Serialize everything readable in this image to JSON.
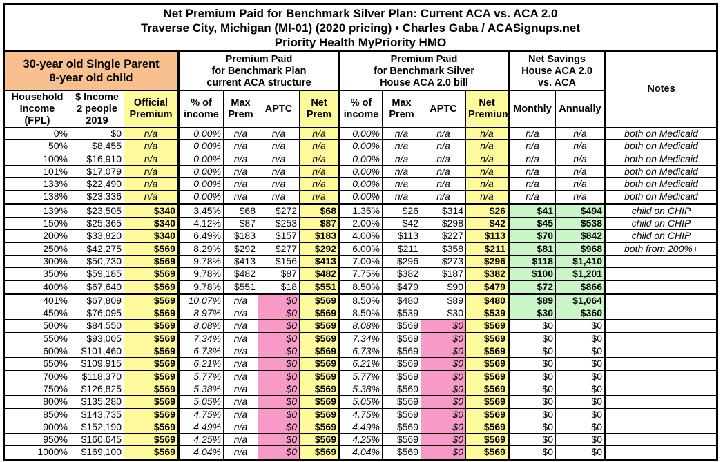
{
  "title": {
    "line1": "Net Premium Paid for Benchmark Silver Plan: Current ACA vs. ACA 2.0",
    "line2": "Traverse City, Michigan (MI-01) (2020 pricing) • Charles Gaba / ACASignups.net",
    "line3": "Priority Health MyPriority HMO"
  },
  "groups": {
    "household": "30-year old Single Parent\n8-year old child",
    "current": "Premium Paid\nfor Benchmark Plan\ncurrent ACA structure",
    "house": "Premium Paid\nfor Benchmark Silver\nHouse ACA 2.0 bill",
    "savings": "Net Savings\nHouse ACA 2.0\nvs. ACA",
    "notes": "Notes"
  },
  "columns": [
    "Household Income (FPL)",
    "$ Income 2 people 2019",
    "Official Premium",
    "% of income",
    "Max Prem",
    "APTC",
    "Net Prem",
    "% of income",
    "Max Prem",
    "APTC",
    "Net Premium",
    "Monthly",
    "Annually"
  ],
  "colors": {
    "yellow": "#fffa9c",
    "pink": "#f79ac8",
    "green": "#c9f5c9",
    "orange": "#f7c08e"
  },
  "rows": [
    [
      "0%",
      "$0",
      "n/a",
      "0.00%",
      "n/a",
      "n/a",
      "n/a",
      "0.00%",
      "n/a",
      "n/a",
      "n/a",
      "n/a",
      "n/a",
      "both on Medicaid"
    ],
    [
      "50%",
      "$8,455",
      "n/a",
      "0.00%",
      "n/a",
      "n/a",
      "n/a",
      "0.00%",
      "n/a",
      "n/a",
      "n/a",
      "n/a",
      "n/a",
      "both on Medicaid"
    ],
    [
      "100%",
      "$16,910",
      "n/a",
      "0.00%",
      "n/a",
      "n/a",
      "n/a",
      "0.00%",
      "n/a",
      "n/a",
      "n/a",
      "n/a",
      "n/a",
      "both on Medicaid"
    ],
    [
      "101%",
      "$17,079",
      "n/a",
      "0.00%",
      "n/a",
      "n/a",
      "n/a",
      "0.00%",
      "n/a",
      "n/a",
      "n/a",
      "n/a",
      "n/a",
      "both on Medicaid"
    ],
    [
      "133%",
      "$22,490",
      "n/a",
      "0.00%",
      "n/a",
      "n/a",
      "n/a",
      "0.00%",
      "n/a",
      "n/a",
      "n/a",
      "n/a",
      "n/a",
      "both on Medicaid"
    ],
    [
      "138%",
      "$23,336",
      "n/a",
      "0.00%",
      "n/a",
      "n/a",
      "n/a",
      "0.00%",
      "n/a",
      "n/a",
      "n/a",
      "n/a",
      "n/a",
      "both on Medicaid"
    ],
    [
      "139%",
      "$23,505",
      "$340",
      "3.45%",
      "$68",
      "$272",
      "$68",
      "1.35%",
      "$26",
      "$314",
      "$26",
      "$41",
      "$494",
      "child on CHIP"
    ],
    [
      "150%",
      "$25,365",
      "$340",
      "4.12%",
      "$87",
      "$253",
      "$87",
      "2.00%",
      "$42",
      "$298",
      "$42",
      "$45",
      "$538",
      "child on CHIP"
    ],
    [
      "200%",
      "$33,820",
      "$340",
      "6.49%",
      "$183",
      "$157",
      "$183",
      "4.00%",
      "$113",
      "$227",
      "$113",
      "$70",
      "$842",
      "child on CHIP"
    ],
    [
      "250%",
      "$42,275",
      "$569",
      "8.29%",
      "$292",
      "$277",
      "$292",
      "6.00%",
      "$211",
      "$358",
      "$211",
      "$81",
      "$968",
      "both from 200%+"
    ],
    [
      "300%",
      "$50,730",
      "$569",
      "9.78%",
      "$413",
      "$156",
      "$413",
      "7.00%",
      "$296",
      "$273",
      "$296",
      "$118",
      "$1,410",
      ""
    ],
    [
      "350%",
      "$59,185",
      "$569",
      "9.78%",
      "$482",
      "$87",
      "$482",
      "7.75%",
      "$382",
      "$187",
      "$382",
      "$100",
      "$1,201",
      ""
    ],
    [
      "400%",
      "$67,640",
      "$569",
      "9.78%",
      "$551",
      "$18",
      "$551",
      "8.50%",
      "$479",
      "$90",
      "$479",
      "$72",
      "$866",
      ""
    ],
    [
      "401%",
      "$67,809",
      "$569",
      "10.07%",
      "n/a",
      "$0",
      "$569",
      "8.50%",
      "$480",
      "$89",
      "$480",
      "$89",
      "$1,064",
      ""
    ],
    [
      "450%",
      "$76,095",
      "$569",
      "8.97%",
      "n/a",
      "$0",
      "$569",
      "8.50%",
      "$539",
      "$30",
      "$539",
      "$30",
      "$360",
      ""
    ],
    [
      "500%",
      "$84,550",
      "$569",
      "8.08%",
      "n/a",
      "$0",
      "$569",
      "8.08%",
      "$569",
      "$0",
      "$569",
      "$0",
      "$0",
      ""
    ],
    [
      "550%",
      "$93,005",
      "$569",
      "7.34%",
      "n/a",
      "$0",
      "$569",
      "7.34%",
      "$569",
      "$0",
      "$569",
      "$0",
      "$0",
      ""
    ],
    [
      "600%",
      "$101,460",
      "$569",
      "6.73%",
      "n/a",
      "$0",
      "$569",
      "6.73%",
      "$569",
      "$0",
      "$569",
      "$0",
      "$0",
      ""
    ],
    [
      "650%",
      "$109,915",
      "$569",
      "6.21%",
      "n/a",
      "$0",
      "$569",
      "6.21%",
      "$569",
      "$0",
      "$569",
      "$0",
      "$0",
      ""
    ],
    [
      "700%",
      "$118,370",
      "$569",
      "5.77%",
      "n/a",
      "$0",
      "$569",
      "5.77%",
      "$569",
      "$0",
      "$569",
      "$0",
      "$0",
      ""
    ],
    [
      "750%",
      "$126,825",
      "$569",
      "5.38%",
      "n/a",
      "$0",
      "$569",
      "5.38%",
      "$569",
      "$0",
      "$569",
      "$0",
      "$0",
      ""
    ],
    [
      "800%",
      "$135,280",
      "$569",
      "5.05%",
      "n/a",
      "$0",
      "$569",
      "5.05%",
      "$569",
      "$0",
      "$569",
      "$0",
      "$0",
      ""
    ],
    [
      "850%",
      "$143,735",
      "$569",
      "4.75%",
      "n/a",
      "$0",
      "$569",
      "4.75%",
      "$569",
      "$0",
      "$569",
      "$0",
      "$0",
      ""
    ],
    [
      "900%",
      "$152,190",
      "$569",
      "4.49%",
      "n/a",
      "$0",
      "$569",
      "4.49%",
      "$569",
      "$0",
      "$569",
      "$0",
      "$0",
      ""
    ],
    [
      "950%",
      "$160,645",
      "$569",
      "4.25%",
      "n/a",
      "$0",
      "$569",
      "4.25%",
      "$569",
      "$0",
      "$569",
      "$0",
      "$0",
      ""
    ],
    [
      "1000%",
      "$169,100",
      "$569",
      "4.04%",
      "n/a",
      "$0",
      "$569",
      "4.04%",
      "$569",
      "$0",
      "$569",
      "$0",
      "$0",
      ""
    ]
  ]
}
